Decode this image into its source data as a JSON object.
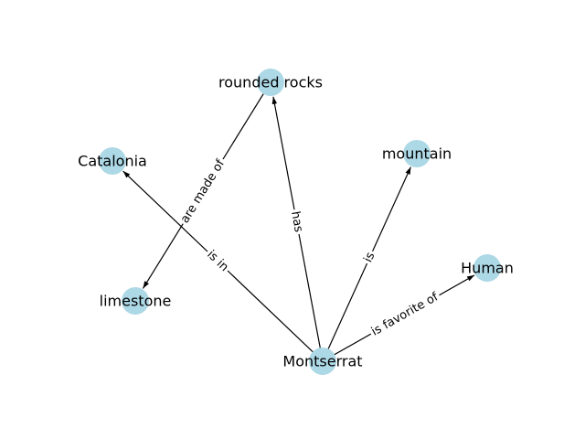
{
  "graph": {
    "nodes": [
      {
        "id": "rounded_rocks",
        "label": "rounded rocks"
      },
      {
        "id": "catalonia",
        "label": "Catalonia"
      },
      {
        "id": "mountain",
        "label": "mountain"
      },
      {
        "id": "human",
        "label": "Human"
      },
      {
        "id": "limestone",
        "label": "limestone"
      },
      {
        "id": "montserrat",
        "label": "Montserrat"
      }
    ],
    "edges": [
      {
        "source": "rounded_rocks",
        "target": "limestone",
        "label": "are made of"
      },
      {
        "source": "montserrat",
        "target": "catalonia",
        "label": "is in"
      },
      {
        "source": "montserrat",
        "target": "rounded_rocks",
        "label": "has"
      },
      {
        "source": "montserrat",
        "target": "mountain",
        "label": "is"
      },
      {
        "source": "montserrat",
        "target": "human",
        "label": "is favorite of"
      }
    ],
    "colors": {
      "node_fill": "#add8e6",
      "edge": "#000000",
      "text": "#000000",
      "background": "#ffffff"
    }
  }
}
